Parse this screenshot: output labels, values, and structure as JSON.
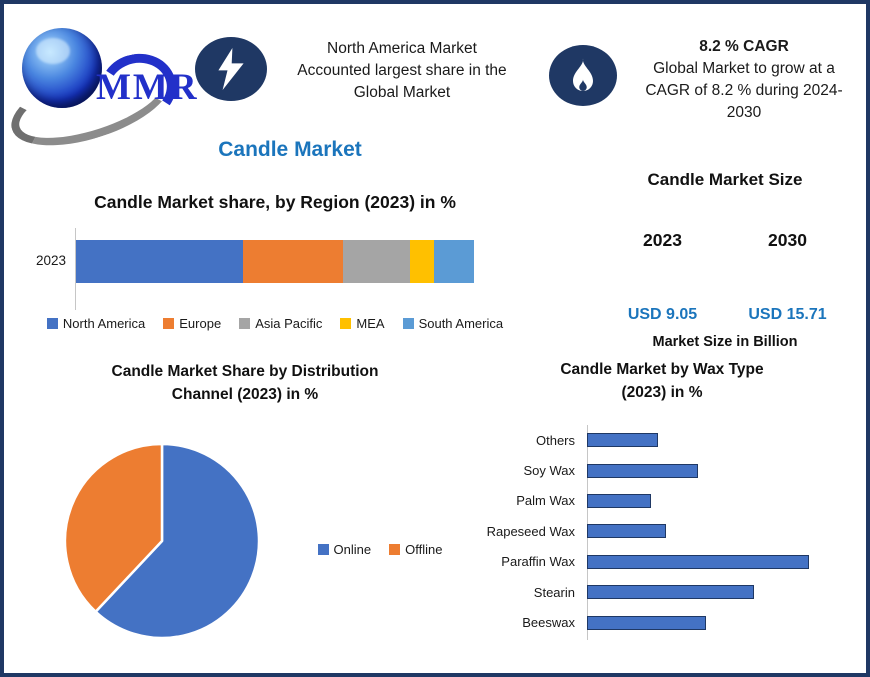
{
  "header": {
    "logo_text": "MMR",
    "callout_region": {
      "lines": [
        "North America Market",
        "Accounted largest share in the",
        "Global Market"
      ]
    },
    "callout_cagr": {
      "title": "8.2 % CAGR",
      "lines": [
        "Global Market to grow at a",
        "CAGR of 8.2 % during 2024-",
        "2030"
      ]
    }
  },
  "page_title": "Candle Market",
  "market_size": {
    "title": "Candle Market Size",
    "columns": [
      {
        "year": "2023",
        "value": "USD 9.05"
      },
      {
        "year": "2030",
        "value": "USD 15.71"
      }
    ],
    "caption": "Market Size in Billion"
  },
  "colors": {
    "accent_blue": "#1B75BC",
    "navy": "#1F3864",
    "bar_blue": "#4472C4",
    "orange": "#ED7D31",
    "gray": "#A5A5A5",
    "yellow": "#FFC000",
    "light_blue": "#5B9BD5"
  },
  "chart_data": [
    {
      "type": "bar",
      "orientation": "horizontal-stacked",
      "title": "Candle Market share, by Region (2023) in %",
      "categories": [
        "2023"
      ],
      "series": [
        {
          "name": "North America",
          "values": [
            42
          ],
          "color": "#4472C4"
        },
        {
          "name": "Europe",
          "values": [
            25
          ],
          "color": "#ED7D31"
        },
        {
          "name": "Asia Pacific",
          "values": [
            17
          ],
          "color": "#A5A5A5"
        },
        {
          "name": "MEA",
          "values": [
            6
          ],
          "color": "#FFC000"
        },
        {
          "name": "South America",
          "values": [
            10
          ],
          "color": "#5B9BD5"
        }
      ],
      "xlim": [
        0,
        100
      ],
      "legend_position": "bottom",
      "grid": false
    },
    {
      "type": "pie",
      "title": "Candle Market Share by Distribution Channel (2023) in %",
      "labels": [
        "Online",
        "Offline"
      ],
      "values": [
        62,
        38
      ],
      "colors": [
        "#4472C4",
        "#ED7D31"
      ],
      "legend_position": "right"
    },
    {
      "type": "bar",
      "orientation": "horizontal",
      "title": "Candle Market by Wax Type (2023) in %",
      "categories": [
        "Others",
        "Soy Wax",
        "Palm Wax",
        "Rapeseed Wax",
        "Paraffin Wax",
        "Stearin",
        "Beeswax"
      ],
      "values": [
        8.5,
        13.3,
        7.7,
        9.5,
        26.6,
        20.0,
        14.3
      ],
      "bar_color": "#4472C4",
      "bar_border": "#1F3864",
      "xlim": [
        0,
        28
      ],
      "grid": false
    }
  ]
}
